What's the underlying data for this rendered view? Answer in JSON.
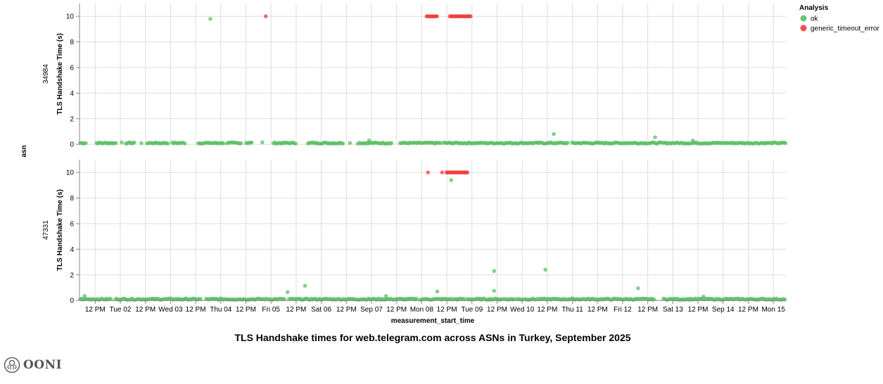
{
  "chart_data": {
    "type": "scatter",
    "title": "TLS Handshake times for web.telegram.com across ASNs in Turkey, September 2025",
    "xlabel": "measurement_start_time",
    "ylabel": "TLS Handshake Time (s)",
    "row_label": "asn",
    "x_domain": [
      "2025-09-01T04:30",
      "2025-09-15T06:00"
    ],
    "ylim": [
      0,
      11
    ],
    "y_ticks": [
      0,
      2,
      4,
      6,
      8,
      10
    ],
    "x_ticks_start": "2025-09-01T12:00",
    "x_ticks": [
      "12 PM",
      "Tue 02",
      "12 PM",
      "Wed 03",
      "12 PM",
      "Thu 04",
      "12 PM",
      "Fri 05",
      "12 PM",
      "Sat 06",
      "12 PM",
      "Sep 07",
      "12 PM",
      "Mon 08",
      "12 PM",
      "Tue 09",
      "12 PM",
      "Wed 10",
      "12 PM",
      "Thu 11",
      "12 PM",
      "Fri 12",
      "12 PM",
      "Sat 13",
      "12 PM",
      "Sep 14",
      "12 PM",
      "Mon 15"
    ],
    "grid": true,
    "legend": {
      "title": "Analysis",
      "position": "top-right",
      "entries": [
        {
          "name": "ok",
          "color": "#5bbf63"
        },
        {
          "name": "generic_timeout_error",
          "color": "#f43c3c"
        }
      ]
    },
    "panels": [
      {
        "asn": "34984",
        "runs": [
          {
            "analysis": "ok",
            "value": 0.1,
            "start": "2025-09-01T04:50",
            "end": "2025-09-01T07:50"
          },
          {
            "analysis": "ok",
            "value": 0.1,
            "start": "2025-09-01T12:35",
            "end": "2025-09-01T22:20"
          },
          {
            "analysis": "ok",
            "value": 0.1,
            "start": "2025-09-02T02:40",
            "end": "2025-09-02T06:40"
          },
          {
            "analysis": "ok",
            "value": 0.1,
            "start": "2025-09-02T12:45",
            "end": "2025-09-02T22:50"
          },
          {
            "analysis": "ok",
            "value": 0.1,
            "start": "2025-09-03T00:50",
            "end": "2025-09-03T06:55"
          },
          {
            "analysis": "ok",
            "value": 0.1,
            "start": "2025-09-03T13:15",
            "end": "2025-09-04T01:40"
          },
          {
            "analysis": "ok",
            "value": 0.1,
            "start": "2025-09-04T03:00",
            "end": "2025-09-04T09:45"
          },
          {
            "analysis": "ok",
            "value": 0.12,
            "start": "2025-09-04T12:05",
            "end": "2025-09-04T15:05"
          },
          {
            "analysis": "ok",
            "value": 0.1,
            "start": "2025-09-05T01:10",
            "end": "2025-09-05T11:55"
          },
          {
            "analysis": "ok",
            "value": 0.1,
            "start": "2025-09-05T17:40",
            "end": "2025-09-06T10:25"
          },
          {
            "analysis": "ok",
            "value": 0.1,
            "start": "2025-09-06T17:30",
            "end": "2025-09-07T09:35"
          },
          {
            "analysis": "ok",
            "value": 0.1,
            "start": "2025-09-07T13:40",
            "end": "2025-09-08T09:25"
          },
          {
            "analysis": "ok",
            "value": 0.1,
            "start": "2025-09-08T10:25",
            "end": "2025-09-10T21:50"
          },
          {
            "analysis": "ok",
            "value": 0.1,
            "start": "2025-09-10T23:50",
            "end": "2025-09-15T05:55"
          },
          {
            "analysis": "generic_timeout_error",
            "value": 10,
            "start": "2025-09-08T02:20",
            "end": "2025-09-08T07:45"
          },
          {
            "analysis": "generic_timeout_error",
            "value": 10,
            "start": "2025-09-08T13:25",
            "end": "2025-09-08T23:30"
          }
        ],
        "points": [
          {
            "analysis": "ok",
            "time": "2025-09-02T00:40",
            "value": 0.15
          },
          {
            "analysis": "ok",
            "time": "2025-09-02T10:05",
            "value": 0.1
          },
          {
            "analysis": "ok",
            "time": "2025-09-03T19:00",
            "value": 9.8
          },
          {
            "analysis": "ok",
            "time": "2025-09-04T19:50",
            "value": 0.15
          },
          {
            "analysis": "generic_timeout_error",
            "time": "2025-09-04T21:30",
            "value": 10
          },
          {
            "analysis": "ok",
            "time": "2025-09-06T13:45",
            "value": 0.1
          },
          {
            "analysis": "ok",
            "time": "2025-09-06T22:50",
            "value": 0.3
          },
          {
            "analysis": "ok",
            "time": "2025-09-10T15:05",
            "value": 0.8
          },
          {
            "analysis": "ok",
            "time": "2025-09-12T15:30",
            "value": 0.55
          },
          {
            "analysis": "ok",
            "time": "2025-09-13T09:35",
            "value": 0.3
          }
        ]
      },
      {
        "asn": "47331",
        "runs": [
          {
            "analysis": "ok",
            "value": 0.1,
            "start": "2025-09-01T04:50",
            "end": "2025-09-01T19:35"
          },
          {
            "analysis": "ok",
            "value": 0.1,
            "start": "2025-09-01T21:40",
            "end": "2025-09-03T14:35"
          },
          {
            "analysis": "ok",
            "value": 0.1,
            "start": "2025-09-03T17:00",
            "end": "2025-09-05T06:55"
          },
          {
            "analysis": "ok",
            "value": 0.1,
            "start": "2025-09-05T08:35",
            "end": "2025-09-07T09:15"
          },
          {
            "analysis": "ok",
            "value": 0.1,
            "start": "2025-09-07T10:15",
            "end": "2025-09-07T21:40"
          },
          {
            "analysis": "ok",
            "value": 0.1,
            "start": "2025-09-07T23:20",
            "end": "2025-09-08T14:05"
          },
          {
            "analysis": "ok",
            "value": 0.1,
            "start": "2025-09-08T15:05",
            "end": "2025-09-08T20:30"
          },
          {
            "analysis": "ok",
            "value": 0.1,
            "start": "2025-09-08T21:50",
            "end": "2025-09-09T14:35"
          },
          {
            "analysis": "ok",
            "value": 0.1,
            "start": "2025-09-09T15:35",
            "end": "2025-09-09T20:40"
          },
          {
            "analysis": "ok",
            "value": 0.1,
            "start": "2025-09-09T21:40",
            "end": "2025-09-12T15:05"
          },
          {
            "analysis": "ok",
            "value": 0.1,
            "start": "2025-09-12T19:30",
            "end": "2025-09-15T05:55"
          },
          {
            "analysis": "generic_timeout_error",
            "value": 10,
            "start": "2025-09-08T11:50",
            "end": "2025-09-08T21:50"
          }
        ],
        "points": [
          {
            "analysis": "ok",
            "time": "2025-09-01T06:55",
            "value": 0.35
          },
          {
            "analysis": "ok",
            "time": "2025-09-05T07:55",
            "value": 0.65
          },
          {
            "analysis": "ok",
            "time": "2025-09-05T16:15",
            "value": 1.15
          },
          {
            "analysis": "ok",
            "time": "2025-09-07T06:55",
            "value": 0.35
          },
          {
            "analysis": "generic_timeout_error",
            "time": "2025-09-08T03:00",
            "value": 10
          },
          {
            "analysis": "ok",
            "time": "2025-09-08T07:25",
            "value": 0.7
          },
          {
            "analysis": "generic_timeout_error",
            "time": "2025-09-08T09:45",
            "value": 10
          },
          {
            "analysis": "ok",
            "time": "2025-09-08T14:05",
            "value": 9.4
          },
          {
            "analysis": "ok",
            "time": "2025-09-09T10:35",
            "value": 2.3
          },
          {
            "analysis": "ok",
            "time": "2025-09-09T10:35",
            "value": 0.75
          },
          {
            "analysis": "ok",
            "time": "2025-09-10T11:05",
            "value": 2.4
          },
          {
            "analysis": "ok",
            "time": "2025-09-12T07:25",
            "value": 0.95
          },
          {
            "analysis": "ok",
            "time": "2025-09-13T14:35",
            "value": 0.3
          }
        ]
      }
    ]
  },
  "branding": {
    "logo_text": "OONI"
  }
}
